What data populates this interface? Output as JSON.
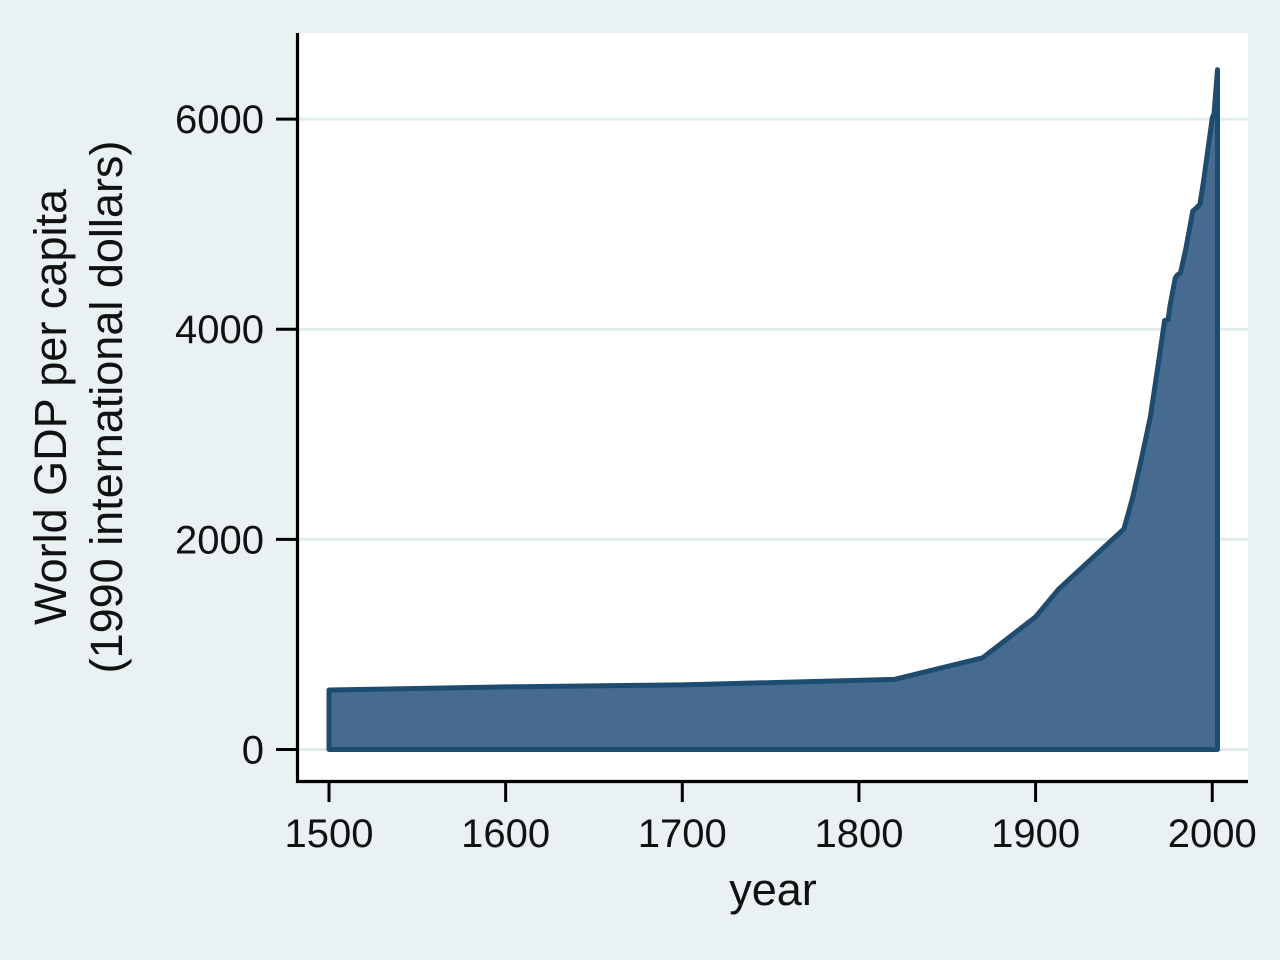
{
  "chart_data": {
    "type": "area",
    "title": "",
    "xlabel": "year",
    "ylabel_line1": "World GDP per capita",
    "ylabel_line2": "(1990 international dollars)",
    "x_unit": "year",
    "y_unit": "1990 international dollars",
    "xlim": [
      1482,
      2020
    ],
    "ylim": [
      -300,
      6820
    ],
    "grid": "horizontal",
    "legend": "none",
    "xtick_values": [
      1500,
      1600,
      1700,
      1800,
      1900,
      2000
    ],
    "xtick_labels": [
      "1500",
      "1600",
      "1700",
      "1800",
      "1900",
      "2000"
    ],
    "ytick_values": [
      0,
      2000,
      4000,
      6000
    ],
    "ytick_labels": [
      "0",
      "2000",
      "4000",
      "6000"
    ],
    "series": [
      {
        "name": "World GDP per capita",
        "baseline": 0,
        "points": [
          [
            1500,
            566
          ],
          [
            1600,
            596
          ],
          [
            1700,
            615
          ],
          [
            1820,
            667
          ],
          [
            1870,
            873
          ],
          [
            1900,
            1262
          ],
          [
            1913,
            1526
          ],
          [
            1950,
            2100
          ],
          [
            1955,
            2402
          ],
          [
            1960,
            2773
          ],
          [
            1965,
            3167
          ],
          [
            1970,
            3736
          ],
          [
            1973,
            4083
          ],
          [
            1975,
            4091
          ],
          [
            1976,
            4216
          ],
          [
            1979,
            4485
          ],
          [
            1980,
            4512
          ],
          [
            1982,
            4537
          ],
          [
            1985,
            4764
          ],
          [
            1989,
            5126
          ],
          [
            1991,
            5154
          ],
          [
            1993,
            5190
          ],
          [
            1995,
            5400
          ],
          [
            2000,
            6012
          ],
          [
            2001,
            6049
          ],
          [
            2003,
            6470
          ]
        ]
      }
    ],
    "colors": {
      "area_fill": "#476B8E",
      "area_line": "#1D4C72",
      "plot_background": "#FFFFFF",
      "outer_background": "#E9F1F3",
      "gridline": "#E2ECEF",
      "axis_line": "#000000",
      "text": "#111111"
    }
  }
}
